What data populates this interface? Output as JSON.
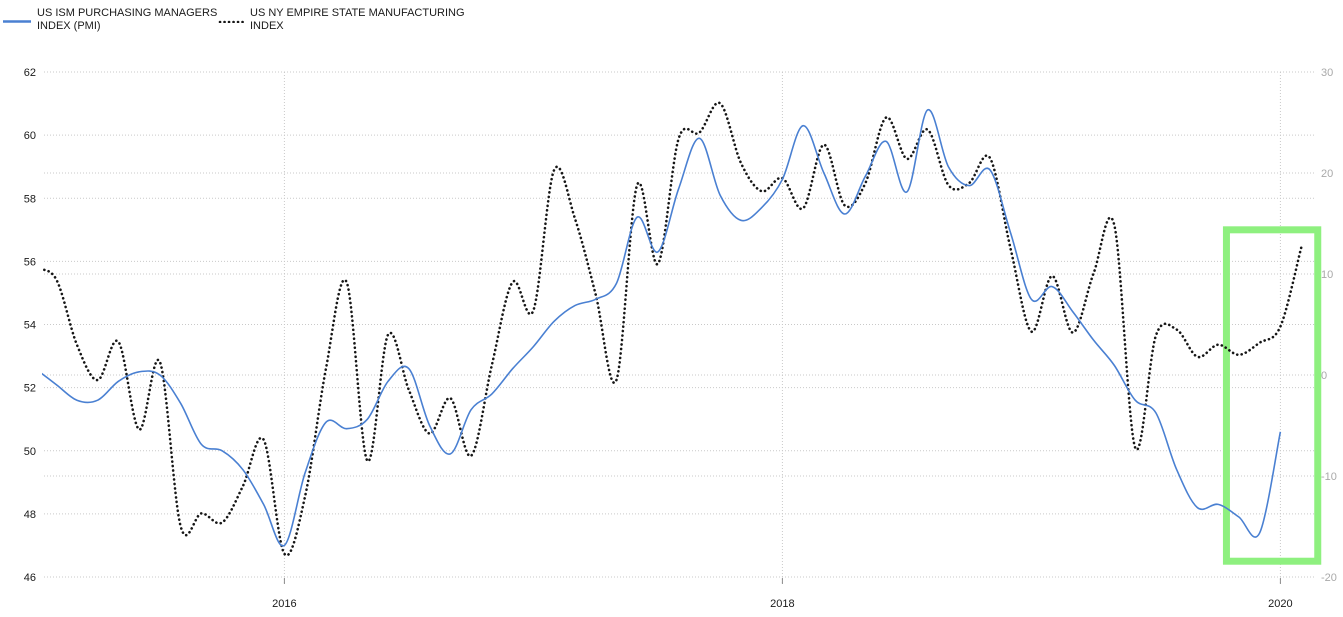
{
  "legend": [
    {
      "label_line1": "US ISM PURCHASING MANAGERS",
      "label_line2": "INDEX (PMI)",
      "swatch": "solid-line"
    },
    {
      "label_line1": "US NY EMPIRE STATE MANUFACTURING",
      "label_line2": "INDEX",
      "swatch": "dotted-line"
    }
  ],
  "colors": {
    "pmi_line": "#4a80d2",
    "empire_line": "#161616",
    "grid": "#c9c9c9",
    "axis_text_left": "#1a1a1a",
    "axis_text_right": "#a9a9a9",
    "year_text": "#1a1a1a",
    "tick_mark": "#8c8c8c",
    "highlight_green": "#8ef07f",
    "background": "#ffffff"
  },
  "chart_data": {
    "type": "line",
    "title": "",
    "x": [
      "2015-01",
      "2015-02",
      "2015-03",
      "2015-04",
      "2015-05",
      "2015-06",
      "2015-07",
      "2015-08",
      "2015-09",
      "2015-10",
      "2015-11",
      "2015-12",
      "2016-01",
      "2016-02",
      "2016-03",
      "2016-04",
      "2016-05",
      "2016-06",
      "2016-07",
      "2016-08",
      "2016-09",
      "2016-10",
      "2016-11",
      "2016-12",
      "2017-01",
      "2017-02",
      "2017-03",
      "2017-04",
      "2017-05",
      "2017-06",
      "2017-07",
      "2017-08",
      "2017-09",
      "2017-10",
      "2017-11",
      "2017-12",
      "2018-01",
      "2018-02",
      "2018-03",
      "2018-04",
      "2018-05",
      "2018-06",
      "2018-07",
      "2018-08",
      "2018-09",
      "2018-10",
      "2018-11",
      "2018-12",
      "2019-01",
      "2019-02",
      "2019-03",
      "2019-04",
      "2019-05",
      "2019-06",
      "2019-07",
      "2019-08",
      "2019-09",
      "2019-10",
      "2019-11",
      "2019-12",
      "2020-01",
      "2020-02"
    ],
    "series": [
      {
        "name": "US ISM PURCHASING MANAGERS INDEX (PMI)",
        "axis": "left",
        "style": "solid",
        "values": [
          52.6,
          52.1,
          51.6,
          51.6,
          52.2,
          52.5,
          52.4,
          51.5,
          50.2,
          50.0,
          49.4,
          48.3,
          47.0,
          49.3,
          50.9,
          50.7,
          51.0,
          52.2,
          52.6,
          50.8,
          49.9,
          51.3,
          51.8,
          52.6,
          53.3,
          54.1,
          54.6,
          54.8,
          55.3,
          57.4,
          56.3,
          58.3,
          59.9,
          58.1,
          57.3,
          57.7,
          58.6,
          60.3,
          58.8,
          57.5,
          58.7,
          59.8,
          58.2,
          60.8,
          59.0,
          58.4,
          58.9,
          56.9,
          54.8,
          55.2,
          54.4,
          53.5,
          52.7,
          51.6,
          51.2,
          49.4,
          48.2,
          48.3,
          47.9,
          47.4,
          50.6,
          null
        ]
      },
      {
        "name": "US NY EMPIRE STATE MANUFACTURING INDEX",
        "axis": "right",
        "style": "dotted",
        "values": [
          10.5,
          9.5,
          3.0,
          -0.5,
          3.3,
          -5.4,
          1.3,
          -15.0,
          -13.7,
          -14.6,
          -11.0,
          -6.4,
          -17.7,
          -12.0,
          0.6,
          9.2,
          -8.5,
          4.0,
          -1.5,
          -5.8,
          -2.3,
          -8.0,
          1.0,
          9.2,
          6.4,
          20.3,
          15.5,
          8.0,
          -0.5,
          18.8,
          11.0,
          23.4,
          24.0,
          26.9,
          21.0,
          18.2,
          19.5,
          16.5,
          22.8,
          16.8,
          19.0,
          25.5,
          21.4,
          24.3,
          18.8,
          19.0,
          21.5,
          12.5,
          4.3,
          9.8,
          4.2,
          10.1,
          14.8,
          -7.2,
          3.9,
          4.5,
          1.8,
          3.0,
          2.0,
          3.2,
          4.8,
          12.6
        ]
      }
    ],
    "left_axis": {
      "ticks": [
        62,
        60,
        58,
        56,
        54,
        52,
        50,
        48,
        46
      ],
      "range": [
        46,
        62
      ]
    },
    "right_axis": {
      "ticks": [
        30,
        20,
        10,
        0,
        -10,
        -20
      ],
      "range": [
        -20,
        30
      ]
    },
    "x_ticks": [
      {
        "label": "2016",
        "month_index": 12
      },
      {
        "label": "2018",
        "month_index": 36
      },
      {
        "label": "2020",
        "month_index": 60
      }
    ],
    "grid": true,
    "legend_position": "top-left"
  },
  "annotations": {
    "highlight_box": {
      "x0_month_index": 57.4,
      "x1_month_index": 61.8,
      "value_top_left_axis": 57.0,
      "value_bottom_left_axis": 46.5,
      "stroke_width": 7
    }
  }
}
